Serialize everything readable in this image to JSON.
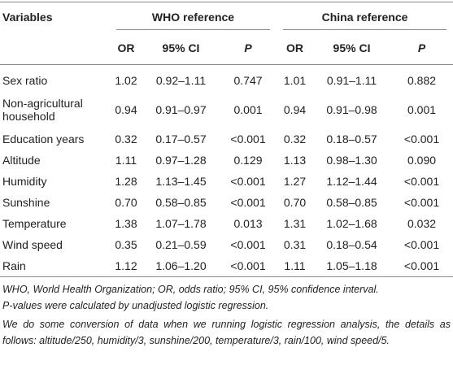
{
  "table": {
    "header": {
      "variables": "Variables",
      "groups": [
        "WHO reference",
        "China reference"
      ],
      "columns": [
        "OR",
        "95% CI",
        "P",
        "OR",
        "95% CI",
        "P"
      ]
    },
    "rows": [
      [
        "Sex ratio",
        "1.02",
        "0.92–1.11",
        "0.747",
        "1.01",
        "0.91–1.11",
        "0.882"
      ],
      [
        "Non-agricultural household",
        "0.94",
        "0.91–0.97",
        "0.001",
        "0.94",
        "0.91–0.98",
        "0.001"
      ],
      [
        "Education years",
        "0.32",
        "0.17–0.57",
        "<0.001",
        "0.32",
        "0.18–0.57",
        "<0.001"
      ],
      [
        "Altitude",
        "1.11",
        "0.97–1.28",
        "0.129",
        "1.13",
        "0.98–1.30",
        "0.090"
      ],
      [
        "Humidity",
        "1.28",
        "1.13–1.45",
        "<0.001",
        "1.27",
        "1.12–1.44",
        "<0.001"
      ],
      [
        "Sunshine",
        "0.70",
        "0.58–0.85",
        "<0.001",
        "0.70",
        "0.58–0.85",
        "<0.001"
      ],
      [
        "Temperature",
        "1.38",
        "1.07–1.78",
        "0.013",
        "1.31",
        "1.02–1.68",
        "0.032"
      ],
      [
        "Wind speed",
        "0.35",
        "0.21–0.59",
        "<0.001",
        "0.31",
        "0.18–0.54",
        "<0.001"
      ],
      [
        "Rain",
        "1.12",
        "1.06–1.20",
        "<0.001",
        "1.11",
        "1.05–1.18",
        "<0.001"
      ]
    ]
  },
  "footnotes": [
    "WHO, World Health Organization; OR, odds ratio; 95% CI, 95% confidence interval.",
    "P-values were calculated by unadjusted logistic regression.",
    "We do some conversion of data when we running logistic regression analysis, the details as follows: altitude/250, humidity/3, sunshine/200, temperature/3, rain/100, wind speed/5."
  ]
}
